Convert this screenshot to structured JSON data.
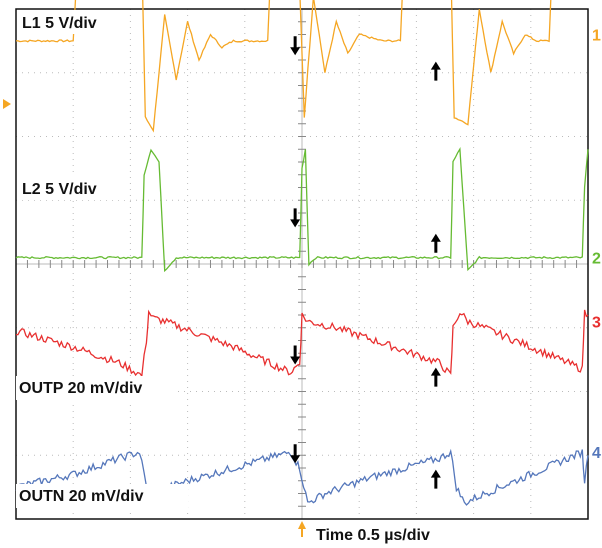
{
  "chart_data": {
    "type": "line",
    "x_unit": "µs",
    "x_range_us": [
      -2.5,
      2.5
    ],
    "y_range_div": [
      -4,
      4
    ],
    "grid": true,
    "labels": {
      "l1": "L1 5 V/div",
      "l2": "L2 5 V/div",
      "outp": "OUTP 20 mV/div",
      "outn": "OUTN 20 mV/div",
      "time": "Time 0.5 µs/div"
    },
    "channel_markers": [
      "1",
      "2",
      "3",
      "4"
    ],
    "series": [
      {
        "name": "L1 5 V/div",
        "marker": "1",
        "color": "#f5a623",
        "points": [
          [
            -2.5,
            3.5
          ],
          [
            -2.0,
            3.5
          ],
          [
            -1.96,
            4.8
          ],
          [
            -1.4,
            4.8
          ],
          [
            -1.37,
            2.3
          ],
          [
            -1.3,
            2.1
          ],
          [
            -1.2,
            3.9
          ],
          [
            -1.1,
            2.9
          ],
          [
            -1.0,
            3.8
          ],
          [
            -0.9,
            3.2
          ],
          [
            -0.8,
            3.6
          ],
          [
            -0.7,
            3.4
          ],
          [
            -0.6,
            3.5
          ],
          [
            -0.3,
            3.5
          ],
          [
            -0.27,
            4.8
          ],
          [
            -0.03,
            4.8
          ],
          [
            0.02,
            2.3
          ],
          [
            0.1,
            4.2
          ],
          [
            0.2,
            3.0
          ],
          [
            0.3,
            3.8
          ],
          [
            0.4,
            3.3
          ],
          [
            0.5,
            3.6
          ],
          [
            0.7,
            3.5
          ],
          [
            0.86,
            3.5
          ],
          [
            0.89,
            4.8
          ],
          [
            1.3,
            4.8
          ],
          [
            1.33,
            2.3
          ],
          [
            1.45,
            2.2
          ],
          [
            1.55,
            4.0
          ],
          [
            1.65,
            3.0
          ],
          [
            1.75,
            3.8
          ],
          [
            1.85,
            3.3
          ],
          [
            1.95,
            3.6
          ],
          [
            2.05,
            3.5
          ],
          [
            2.16,
            3.5
          ],
          [
            2.19,
            4.8
          ],
          [
            2.5,
            4.8
          ]
        ]
      },
      {
        "name": "L2 5 V/div",
        "marker": "2",
        "color": "#66bb33",
        "points": [
          [
            -2.5,
            0.1
          ],
          [
            -1.4,
            0.1
          ],
          [
            -1.38,
            1.4
          ],
          [
            -1.32,
            1.8
          ],
          [
            -1.25,
            1.6
          ],
          [
            -1.2,
            -0.1
          ],
          [
            -1.1,
            0.1
          ],
          [
            -0.02,
            0.1
          ],
          [
            0.0,
            1.5
          ],
          [
            0.03,
            1.8
          ],
          [
            0.06,
            0.0
          ],
          [
            0.12,
            0.1
          ],
          [
            1.3,
            0.1
          ],
          [
            1.32,
            1.6
          ],
          [
            1.38,
            1.8
          ],
          [
            1.45,
            -0.1
          ],
          [
            1.55,
            0.1
          ],
          [
            2.45,
            0.1
          ],
          [
            2.47,
            1.2
          ],
          [
            2.5,
            1.8
          ]
        ]
      },
      {
        "name": "OUTP 20 mV/div",
        "marker": "3",
        "color": "#e83030",
        "points": [
          [
            -2.5,
            -1.05
          ],
          [
            -2.0,
            -1.3
          ],
          [
            -1.6,
            -1.55
          ],
          [
            -1.4,
            -1.75
          ],
          [
            -1.36,
            -1.2
          ],
          [
            -1.34,
            -0.75
          ],
          [
            -1.3,
            -0.85
          ],
          [
            -1.2,
            -0.9
          ],
          [
            -0.6,
            -1.3
          ],
          [
            -0.1,
            -1.7
          ],
          [
            -0.02,
            -1.55
          ],
          [
            0.0,
            -0.8
          ],
          [
            0.05,
            -0.9
          ],
          [
            0.3,
            -1.0
          ],
          [
            0.8,
            -1.3
          ],
          [
            1.2,
            -1.55
          ],
          [
            1.3,
            -1.75
          ],
          [
            1.32,
            -1.0
          ],
          [
            1.38,
            -0.75
          ],
          [
            1.45,
            -0.9
          ],
          [
            2.0,
            -1.3
          ],
          [
            2.45,
            -1.65
          ],
          [
            2.47,
            -0.75
          ],
          [
            2.5,
            -0.8
          ]
        ]
      },
      {
        "name": "OUTN 20 mV/div",
        "marker": "4",
        "color": "#5577bb",
        "points": [
          [
            -2.5,
            -3.5
          ],
          [
            -2.0,
            -3.3
          ],
          [
            -1.6,
            -3.05
          ],
          [
            -1.42,
            -2.95
          ],
          [
            -1.38,
            -3.3
          ],
          [
            -1.34,
            -3.7
          ],
          [
            -1.25,
            -3.55
          ],
          [
            -1.0,
            -3.4
          ],
          [
            -0.6,
            -3.2
          ],
          [
            -0.1,
            -2.95
          ],
          [
            -0.02,
            -3.2
          ],
          [
            0.05,
            -3.75
          ],
          [
            0.2,
            -3.6
          ],
          [
            0.6,
            -3.35
          ],
          [
            1.2,
            -3.05
          ],
          [
            1.3,
            -2.95
          ],
          [
            1.35,
            -3.5
          ],
          [
            1.42,
            -3.75
          ],
          [
            1.6,
            -3.6
          ],
          [
            2.0,
            -3.3
          ],
          [
            2.45,
            -2.95
          ],
          [
            2.47,
            -3.4
          ],
          [
            2.5,
            -3.0
          ]
        ]
      }
    ],
    "arrows": [
      {
        "x_us": -0.06,
        "y_div": 3.4,
        "dir": "down"
      },
      {
        "x_us": -0.06,
        "y_div": 0.7,
        "dir": "down"
      },
      {
        "x_us": -0.06,
        "y_div": -1.45,
        "dir": "down"
      },
      {
        "x_us": -0.06,
        "y_div": -3.0,
        "dir": "down"
      },
      {
        "x_us": 1.17,
        "y_div": 3.05,
        "dir": "up"
      },
      {
        "x_us": 1.17,
        "y_div": 0.35,
        "dir": "up"
      },
      {
        "x_us": 1.17,
        "y_div": -1.75,
        "dir": "up"
      },
      {
        "x_us": 1.17,
        "y_div": -3.35,
        "dir": "up"
      }
    ]
  }
}
